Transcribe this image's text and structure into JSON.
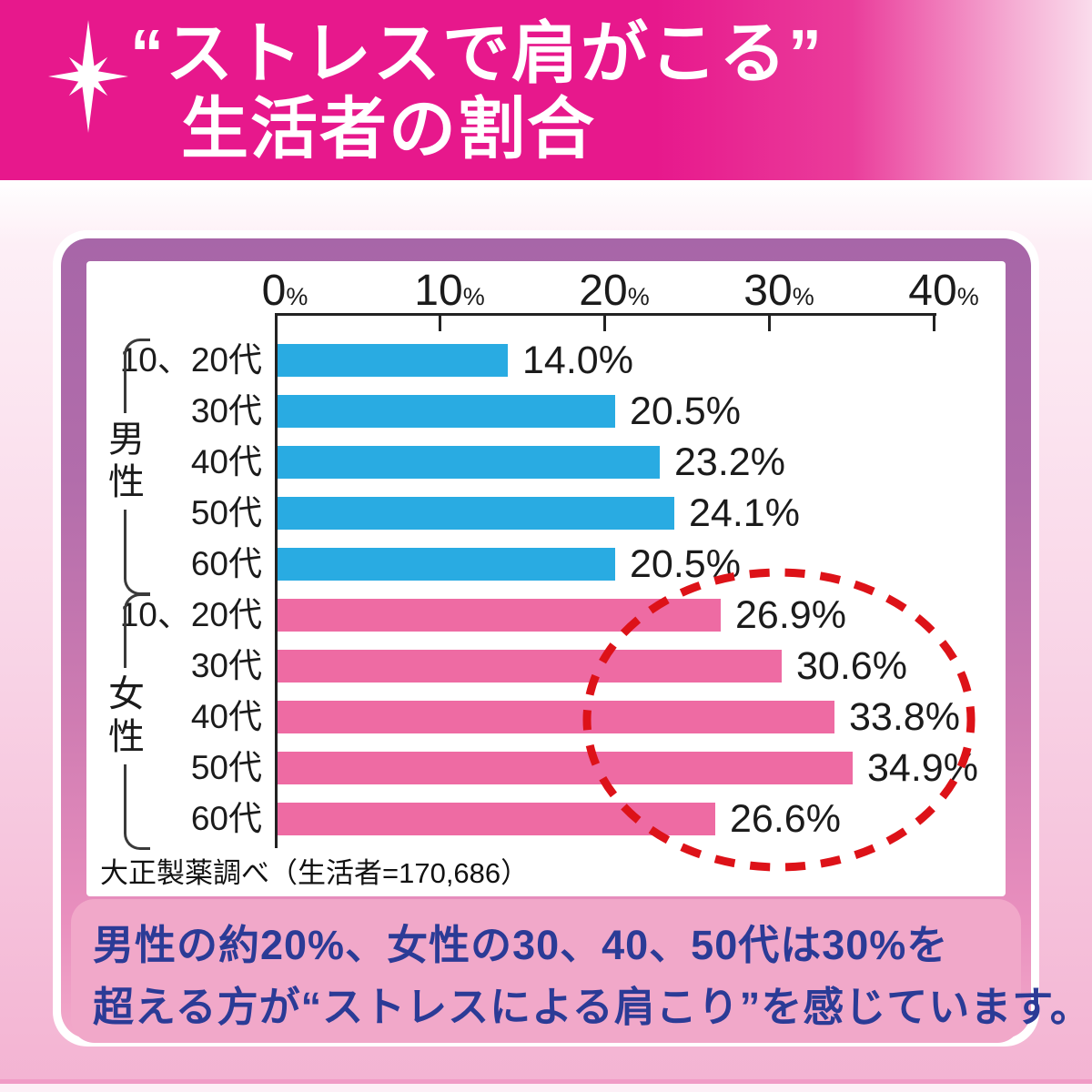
{
  "header": {
    "title_line1": "“ストレスで肩がこる”",
    "title_line2": "生活者の割合",
    "bg_color": "#e7188c",
    "sparkle_icon": "white 8-point sparkle"
  },
  "chart_data": {
    "type": "bar",
    "orientation": "horizontal",
    "title": "“ストレスで肩がこる” 生活者の割合",
    "axis": {
      "ticks": [
        0,
        10,
        20,
        30,
        40
      ],
      "unit": "%",
      "xlim": [
        0,
        40
      ],
      "position": "top"
    },
    "groups": [
      {
        "name": "男性",
        "color": "#29abe2",
        "categories": [
          "10、20代",
          "30代",
          "40代",
          "50代",
          "60代"
        ],
        "values": [
          14.0,
          20.5,
          23.2,
          24.1,
          20.5
        ]
      },
      {
        "name": "女性",
        "color": "#ee6ba3",
        "categories": [
          "10、20代",
          "30代",
          "40代",
          "50代",
          "60代"
        ],
        "values": [
          26.9,
          30.6,
          33.8,
          34.9,
          26.6
        ]
      }
    ],
    "rows": [
      {
        "group": "男性",
        "label": "10、20代",
        "value": 14.0,
        "display": "14.0%"
      },
      {
        "group": "男性",
        "label": "30代",
        "value": 20.5,
        "display": "20.5%"
      },
      {
        "group": "男性",
        "label": "40代",
        "value": 23.2,
        "display": "23.2%"
      },
      {
        "group": "男性",
        "label": "50代",
        "value": 24.1,
        "display": "24.1%"
      },
      {
        "group": "男性",
        "label": "60代",
        "value": 20.5,
        "display": "20.5%"
      },
      {
        "group": "女性",
        "label": "10、20代",
        "value": 26.9,
        "display": "26.9%"
      },
      {
        "group": "女性",
        "label": "30代",
        "value": 30.6,
        "display": "30.6%"
      },
      {
        "group": "女性",
        "label": "40代",
        "value": 33.8,
        "display": "33.8%"
      },
      {
        "group": "女性",
        "label": "50代",
        "value": 34.9,
        "display": "34.9%"
      },
      {
        "group": "女性",
        "label": "60代",
        "value": 26.6,
        "display": "26.6%"
      }
    ],
    "annotation": {
      "type": "dashed-ellipse",
      "color": "#dd1218",
      "highlights": "女性の高い割合（30代・40代・50代は30%超）"
    }
  },
  "source_note": "大正製薬調べ（生活者=170,686）",
  "summary": {
    "line1": "男性の約20%、女性の30、40、50代は30%を",
    "line2": "超える方が“ストレスによる肩こり”を感じています。"
  },
  "colors": {
    "header_bg": "#e7188c",
    "frame_top": "#a766a8",
    "frame_bottom": "#f2a9ca",
    "male_bar": "#29abe2",
    "female_bar": "#ee6ba3",
    "summary_box": "#f1a8c9",
    "summary_text": "#2b3b96",
    "annotation_red": "#dd1218"
  }
}
